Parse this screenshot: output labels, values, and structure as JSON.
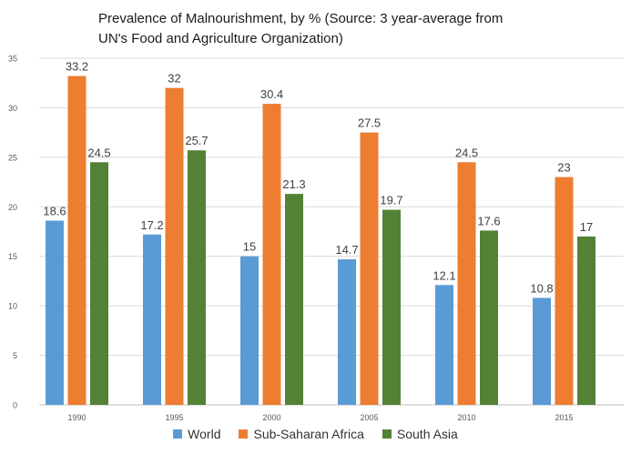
{
  "chart_data": {
    "type": "bar",
    "title": "Prevalence of Malnourishment, by % (Source: 3 year-average from UN's Food and Agriculture Organization)",
    "categories": [
      "1990",
      "1995",
      "2000",
      "2005",
      "2010",
      "2015"
    ],
    "series": [
      {
        "name": "World",
        "values": [
          18.6,
          17.2,
          15,
          14.7,
          12.1,
          10.8
        ],
        "color": "#5b9bd5"
      },
      {
        "name": "Sub-Saharan Africa",
        "values": [
          33.2,
          32,
          30.4,
          27.5,
          24.5,
          23
        ],
        "color": "#ed7d31"
      },
      {
        "name": "South Asia",
        "values": [
          24.5,
          25.7,
          21.3,
          19.7,
          17.6,
          17
        ],
        "color": "#548235"
      }
    ],
    "ylim": [
      0,
      35
    ],
    "yticks": [
      0,
      5,
      10,
      15,
      20,
      25,
      30,
      35
    ],
    "grid": true,
    "legend_position": "bottom"
  }
}
